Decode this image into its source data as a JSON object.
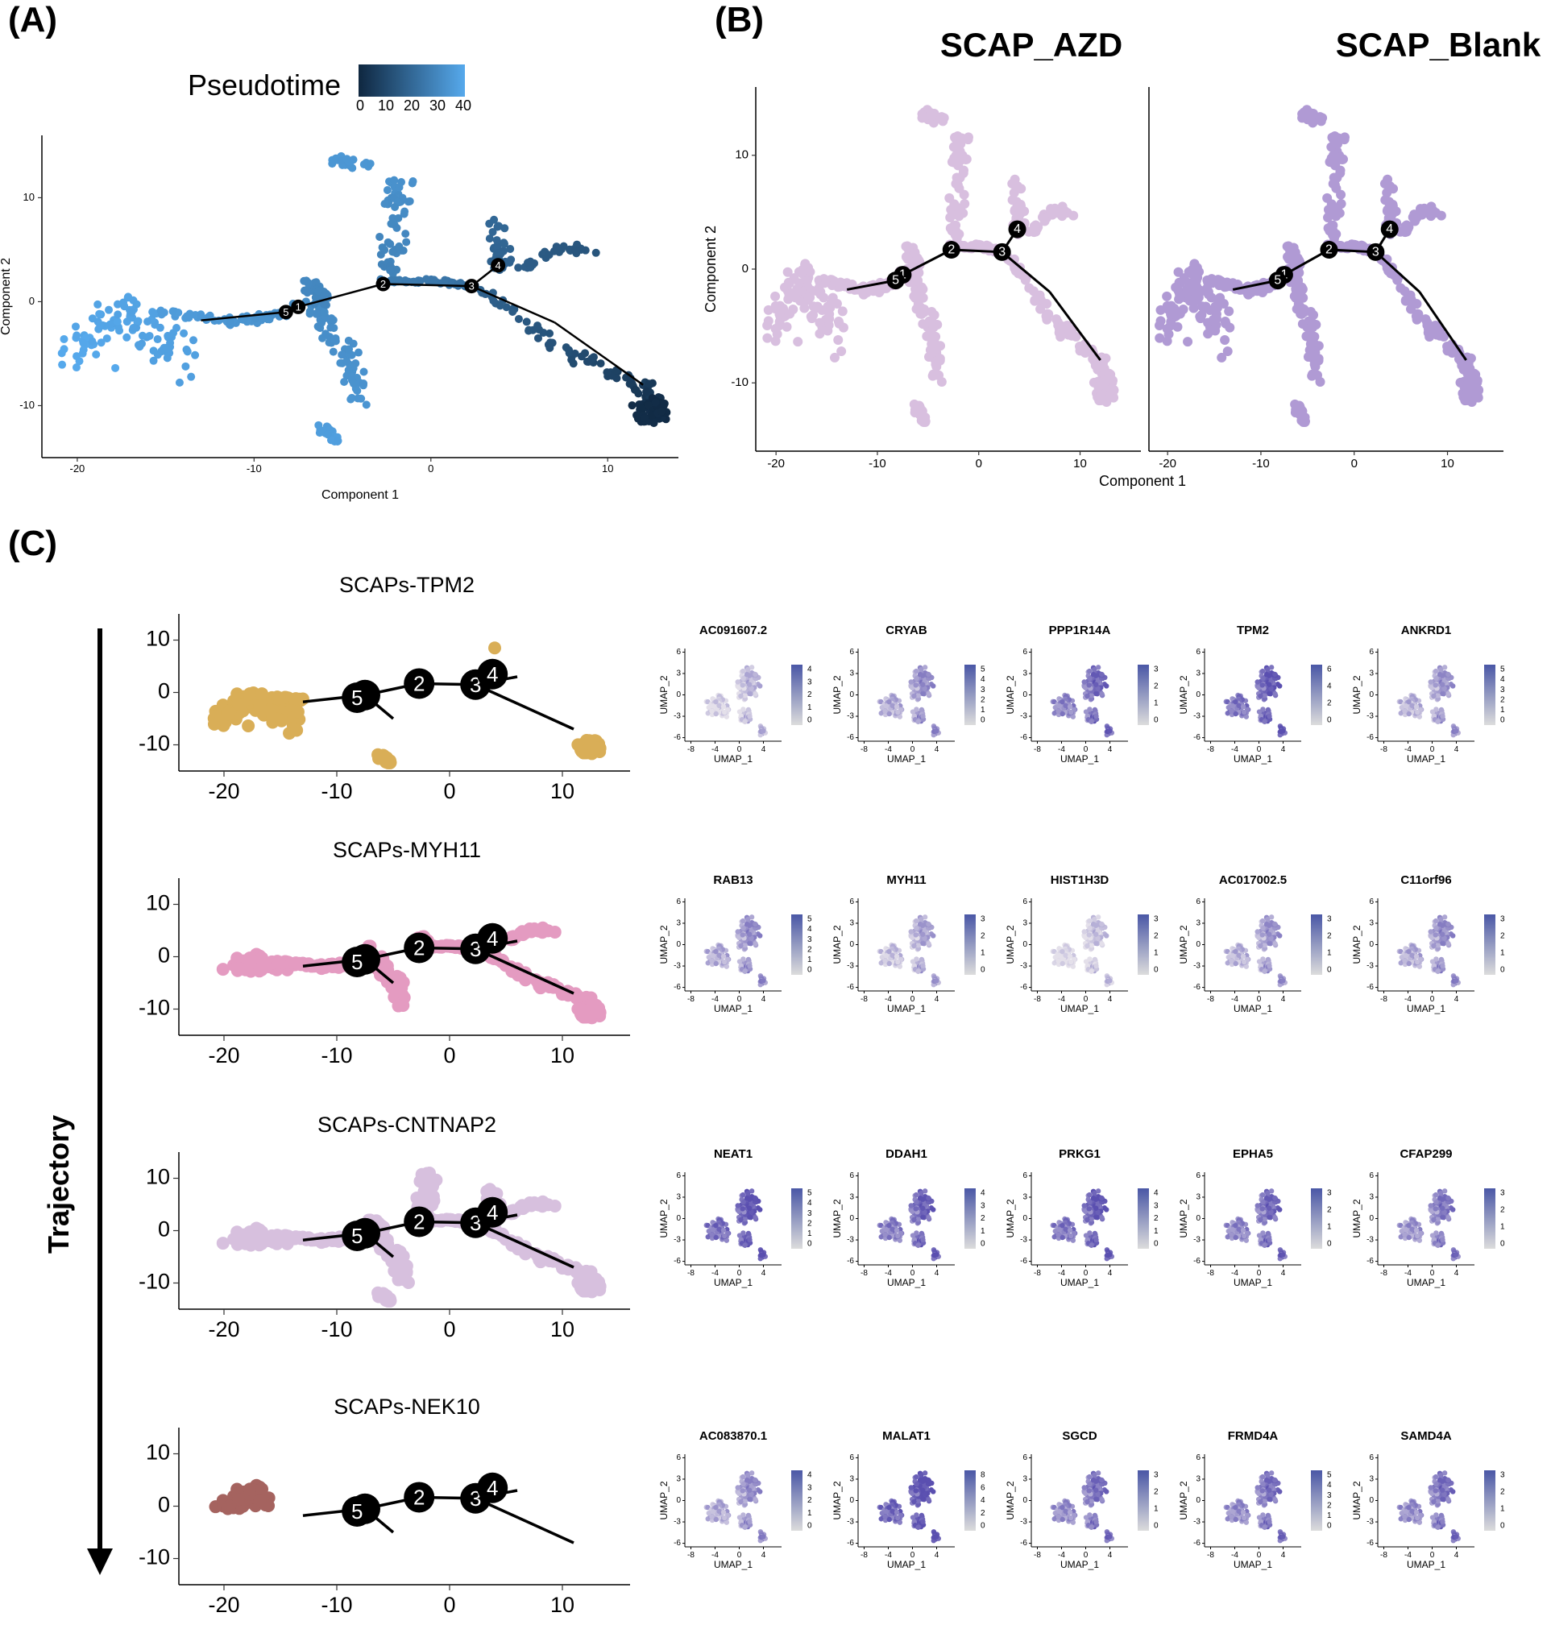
{
  "panel_labels": {
    "a": "(A)",
    "b": "(B)",
    "c": "(C)"
  },
  "colors": {
    "pseudo_low": "#0f2740",
    "pseudo_high": "#56a9ec",
    "azd": "#d8bfdf",
    "blank": "#b09ad4",
    "tpm2": "#d9ae57",
    "myh11": "#e49bc1",
    "cntnap2": "#d7c0de",
    "nek10": "#a5635f",
    "umap_low": "#dcdcdc",
    "umap_high": "#4a57a6"
  },
  "chart_data": [
    {
      "id": "A",
      "type": "scatter",
      "title": "",
      "xlabel": "Component 1",
      "ylabel": "Component 2",
      "xlim": [
        -22,
        14
      ],
      "ylim": [
        -15,
        16
      ],
      "xticks": [
        "-20",
        "-10",
        "0",
        "10"
      ],
      "yticks": [
        "10",
        "0",
        "-10"
      ],
      "xtick_values": [
        -20,
        -10,
        0,
        10
      ],
      "ytick_values": [
        10,
        0,
        -10
      ],
      "legend": {
        "title": "Pseudotime",
        "ticks": [
          "0",
          "10",
          "20",
          "30",
          "40"
        ],
        "placement": "top-center"
      },
      "branch_points": [
        {
          "label": "1",
          "x": -7.5,
          "y": -0.5
        },
        {
          "label": "2",
          "x": -2.7,
          "y": 1.7
        },
        {
          "label": "3",
          "x": 2.3,
          "y": 1.5
        },
        {
          "label": "4",
          "x": 3.8,
          "y": 3.5
        },
        {
          "label": "5",
          "x": -8.2,
          "y": -1.0
        }
      ]
    },
    {
      "id": "B",
      "type": "scatter",
      "xlabel": "Component 1",
      "ylabel": "Component 2",
      "facets": [
        "SCAP_AZD",
        "SCAP_Blank"
      ],
      "xlim": [
        -22,
        16
      ],
      "ylim": [
        -16,
        16
      ],
      "xticks": [
        "-20",
        "-10",
        "0",
        "10"
      ],
      "yticks": [
        "10",
        "0",
        "-10"
      ],
      "xtick_values": [
        -20,
        -10,
        0,
        10
      ],
      "ytick_values": [
        10,
        0,
        -10
      ]
    },
    {
      "id": "C",
      "type": "scatter",
      "trajectory_label": "Trajectory",
      "xticks": [
        "-20",
        "-10",
        "0",
        "10"
      ],
      "yticks": [
        "10",
        "0",
        "-10"
      ],
      "xtick_values": [
        -20,
        -10,
        0,
        10
      ],
      "ytick_values": [
        10,
        0,
        -10
      ],
      "umap_xticks": [
        "-8",
        "-4",
        "0",
        "4"
      ],
      "umap_yticks": [
        "6",
        "3",
        "0",
        "-3",
        "-6"
      ],
      "umap_xlabel": "UMAP_1",
      "umap_ylabel": "UMAP_2",
      "rows": [
        {
          "title": "SCAPs-TPM2",
          "color_key": "tpm2",
          "genes": [
            {
              "name": "AC091607.2",
              "max": 4,
              "ticks": [
                "4",
                "3",
                "2",
                "1",
                "0"
              ],
              "intensity": 0.18
            },
            {
              "name": "CRYAB",
              "max": 5,
              "ticks": [
                "5",
                "4",
                "3",
                "2",
                "1",
                "0"
              ],
              "intensity": 0.45
            },
            {
              "name": "PPP1R14A",
              "max": 3,
              "ticks": [
                "3",
                "2",
                "1",
                "0"
              ],
              "intensity": 0.7
            },
            {
              "name": "TPM2",
              "max": 6,
              "ticks": [
                "6",
                "4",
                "2",
                "0"
              ],
              "intensity": 0.8
            },
            {
              "name": "ANKRD1",
              "max": 5,
              "ticks": [
                "5",
                "4",
                "3",
                "2",
                "1",
                "0"
              ],
              "intensity": 0.4
            }
          ]
        },
        {
          "title": "SCAPs-MYH11",
          "color_key": "myh11",
          "genes": [
            {
              "name": "RAB13",
              "max": 5,
              "ticks": [
                "5",
                "4",
                "3",
                "2",
                "1",
                "0"
              ],
              "intensity": 0.45
            },
            {
              "name": "MYH11",
              "max": 3,
              "ticks": [
                "3",
                "2",
                "1",
                "0"
              ],
              "intensity": 0.3
            },
            {
              "name": "HIST1H3D",
              "max": 3,
              "ticks": [
                "3",
                "2",
                "1",
                "0"
              ],
              "intensity": 0.1
            },
            {
              "name": "AC017002.5",
              "max": 3,
              "ticks": [
                "3",
                "2",
                "1",
                "0"
              ],
              "intensity": 0.4
            },
            {
              "name": "C11orf96",
              "max": 3,
              "ticks": [
                "3",
                "2",
                "1",
                "0"
              ],
              "intensity": 0.45
            }
          ]
        },
        {
          "title": "SCAPs-CNTNAP2",
          "color_key": "cntnap2",
          "genes": [
            {
              "name": "NEAT1",
              "max": 5,
              "ticks": [
                "5",
                "4",
                "3",
                "2",
                "1",
                "0"
              ],
              "intensity": 0.85
            },
            {
              "name": "DDAH1",
              "max": 4,
              "ticks": [
                "4",
                "3",
                "2",
                "1",
                "0"
              ],
              "intensity": 0.75
            },
            {
              "name": "PRKG1",
              "max": 4,
              "ticks": [
                "4",
                "3",
                "2",
                "1",
                "0"
              ],
              "intensity": 0.8
            },
            {
              "name": "EPHA5",
              "max": 3,
              "ticks": [
                "3",
                "2",
                "1",
                "0"
              ],
              "intensity": 0.7
            },
            {
              "name": "CFAP299",
              "max": 3,
              "ticks": [
                "3",
                "2",
                "1",
                "0"
              ],
              "intensity": 0.6
            }
          ]
        },
        {
          "title": "SCAPs-NEK10",
          "color_key": "nek10",
          "genes": [
            {
              "name": "AC083870.1",
              "max": 4,
              "ticks": [
                "4",
                "3",
                "2",
                "1",
                "0"
              ],
              "intensity": 0.45
            },
            {
              "name": "MALAT1",
              "max": 8,
              "ticks": [
                "8",
                "6",
                "4",
                "2",
                "0"
              ],
              "intensity": 0.9
            },
            {
              "name": "SGCD",
              "max": 3,
              "ticks": [
                "3",
                "2",
                "1",
                "0"
              ],
              "intensity": 0.65
            },
            {
              "name": "FRMD4A",
              "max": 5,
              "ticks": [
                "5",
                "4",
                "3",
                "2",
                "1",
                "0"
              ],
              "intensity": 0.65
            },
            {
              "name": "SAMD4A",
              "max": 3,
              "ticks": [
                "3",
                "2",
                "1",
                "0"
              ],
              "intensity": 0.65
            }
          ]
        }
      ]
    }
  ]
}
